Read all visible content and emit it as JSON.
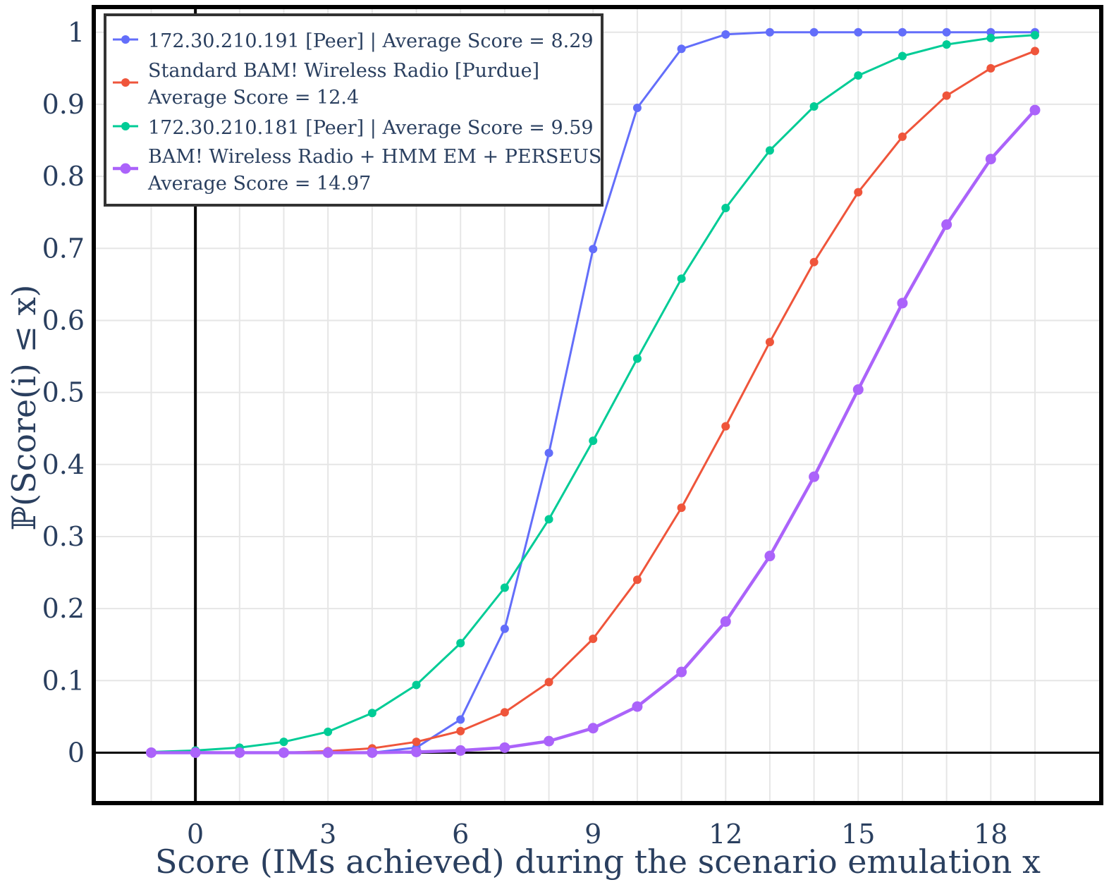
{
  "chart_data": {
    "type": "line",
    "xlabel": "Score (IMs achieved) during the scenario emulation x",
    "ylabel": "ℙ(Score(i) ≤ x)",
    "xlim": [
      -2.3,
      20.5
    ],
    "ylim": [
      -0.07,
      1.035
    ],
    "x_ticks": [
      0,
      3,
      6,
      9,
      12,
      15,
      18
    ],
    "y_ticks": [
      0,
      0.1,
      0.2,
      0.3,
      0.4,
      0.5,
      0.6,
      0.7,
      0.8,
      0.9,
      1
    ],
    "y_tick_labels": [
      "0",
      "0.1",
      "0.2",
      "0.3",
      "0.4",
      "0.5",
      "0.6",
      "0.7",
      "0.8",
      "0.9",
      "1"
    ],
    "x_tick_labels": [
      "0",
      "3",
      "6",
      "9",
      "12",
      "15",
      "18"
    ],
    "grid": true,
    "legend_position": "top-left",
    "x": [
      -1,
      0,
      1,
      2,
      3,
      4,
      5,
      6,
      7,
      8,
      9,
      10,
      11,
      12,
      13,
      14,
      15,
      16,
      17,
      18,
      19
    ],
    "series": [
      {
        "name": "172.30.210.191 [Peer] | Average Score = 8.29",
        "legend_lines": [
          "172.30.210.191 [Peer] | Average Score = 8.29"
        ],
        "color": "#636efa",
        "values": [
          0,
          0.001,
          0,
          0,
          0,
          0,
          0.007,
          0.046,
          0.172,
          0.416,
          0.699,
          0.895,
          0.977,
          0.997,
          1.0,
          1.0,
          1.0,
          1.0,
          1.0,
          1.0,
          1.0
        ]
      },
      {
        "name": "Standard BAM! Wireless Radio [Purdue] Average Score = 12.4",
        "legend_lines": [
          "Standard BAM! Wireless Radio [Purdue]",
          "Average Score = 12.4"
        ],
        "color": "#ef553b",
        "values": [
          0,
          0,
          0,
          0,
          0.002,
          0.006,
          0.015,
          0.03,
          0.056,
          0.098,
          0.158,
          0.24,
          0.34,
          0.453,
          0.57,
          0.681,
          0.778,
          0.855,
          0.912,
          0.95,
          0.974
        ]
      },
      {
        "name": "172.30.210.181 [Peer] | Average Score = 9.59",
        "legend_lines": [
          "172.30.210.181 [Peer] | Average Score = 9.59"
        ],
        "color": "#00cc96",
        "values": [
          0.001,
          0.003,
          0.007,
          0.015,
          0.029,
          0.055,
          0.094,
          0.152,
          0.229,
          0.324,
          0.433,
          0.547,
          0.658,
          0.756,
          0.836,
          0.897,
          0.94,
          0.967,
          0.983,
          0.992,
          0.996
        ]
      },
      {
        "name": "BAM! Wireless Radio + HMM EM + PERSEUS Average Score = 14.97",
        "legend_lines": [
          "BAM! Wireless Radio + HMM EM + PERSEUS",
          "Average Score = 14.97"
        ],
        "color": "#ab63fa",
        "values": [
          0,
          0,
          0,
          0,
          0,
          0,
          0.001,
          0.003,
          0.007,
          0.016,
          0.034,
          0.064,
          0.112,
          0.182,
          0.273,
          0.383,
          0.504,
          0.624,
          0.733,
          0.824,
          0.892
        ]
      }
    ]
  }
}
